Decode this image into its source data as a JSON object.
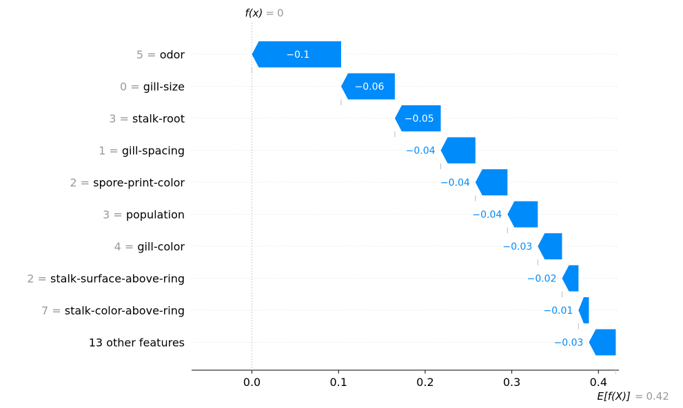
{
  "chart_data": {
    "type": "waterfall",
    "fx_label": {
      "name": "f(x)",
      "value": "0"
    },
    "ex_label": {
      "name": "E[f(X)]",
      "value": "0.42"
    },
    "base_value": 0.42,
    "output_value": 0.0,
    "xlim": [
      -0.07,
      0.42
    ],
    "xticks": [
      "0.0",
      "0.1",
      "0.2",
      "0.3",
      "0.4"
    ],
    "xtick_values": [
      0.0,
      0.1,
      0.2,
      0.3,
      0.4
    ],
    "bars": [
      {
        "feature_value": "5",
        "feature": "odor",
        "label": "−0.1",
        "start": 0.103,
        "end": 0.0
      },
      {
        "feature_value": "0",
        "feature": "gill-size",
        "label": "−0.06",
        "start": 0.165,
        "end": 0.103
      },
      {
        "feature_value": "3",
        "feature": "stalk-root",
        "label": "−0.05",
        "start": 0.218,
        "end": 0.165
      },
      {
        "feature_value": "1",
        "feature": "gill-spacing",
        "label": "−0.04",
        "start": 0.258,
        "end": 0.218
      },
      {
        "feature_value": "2",
        "feature": "spore-print-color",
        "label": "−0.04",
        "start": 0.295,
        "end": 0.258
      },
      {
        "feature_value": "3",
        "feature": "population",
        "label": "−0.04",
        "start": 0.33,
        "end": 0.295
      },
      {
        "feature_value": "4",
        "feature": "gill-color",
        "label": "−0.03",
        "start": 0.358,
        "end": 0.33
      },
      {
        "feature_value": "2",
        "feature": "stalk-surface-above-ring",
        "label": "−0.02",
        "start": 0.377,
        "end": 0.358
      },
      {
        "feature_value": "7",
        "feature": "stalk-color-above-ring",
        "label": "−0.01",
        "start": 0.389,
        "end": 0.377
      },
      {
        "feature_value": "",
        "feature": "13 other features",
        "label": "−0.03",
        "start": 0.42,
        "end": 0.389
      }
    ],
    "colors": {
      "negative": "#008bfb",
      "gray_text": "#999999",
      "axis": "#000000",
      "gridline": "#cccccc"
    }
  }
}
